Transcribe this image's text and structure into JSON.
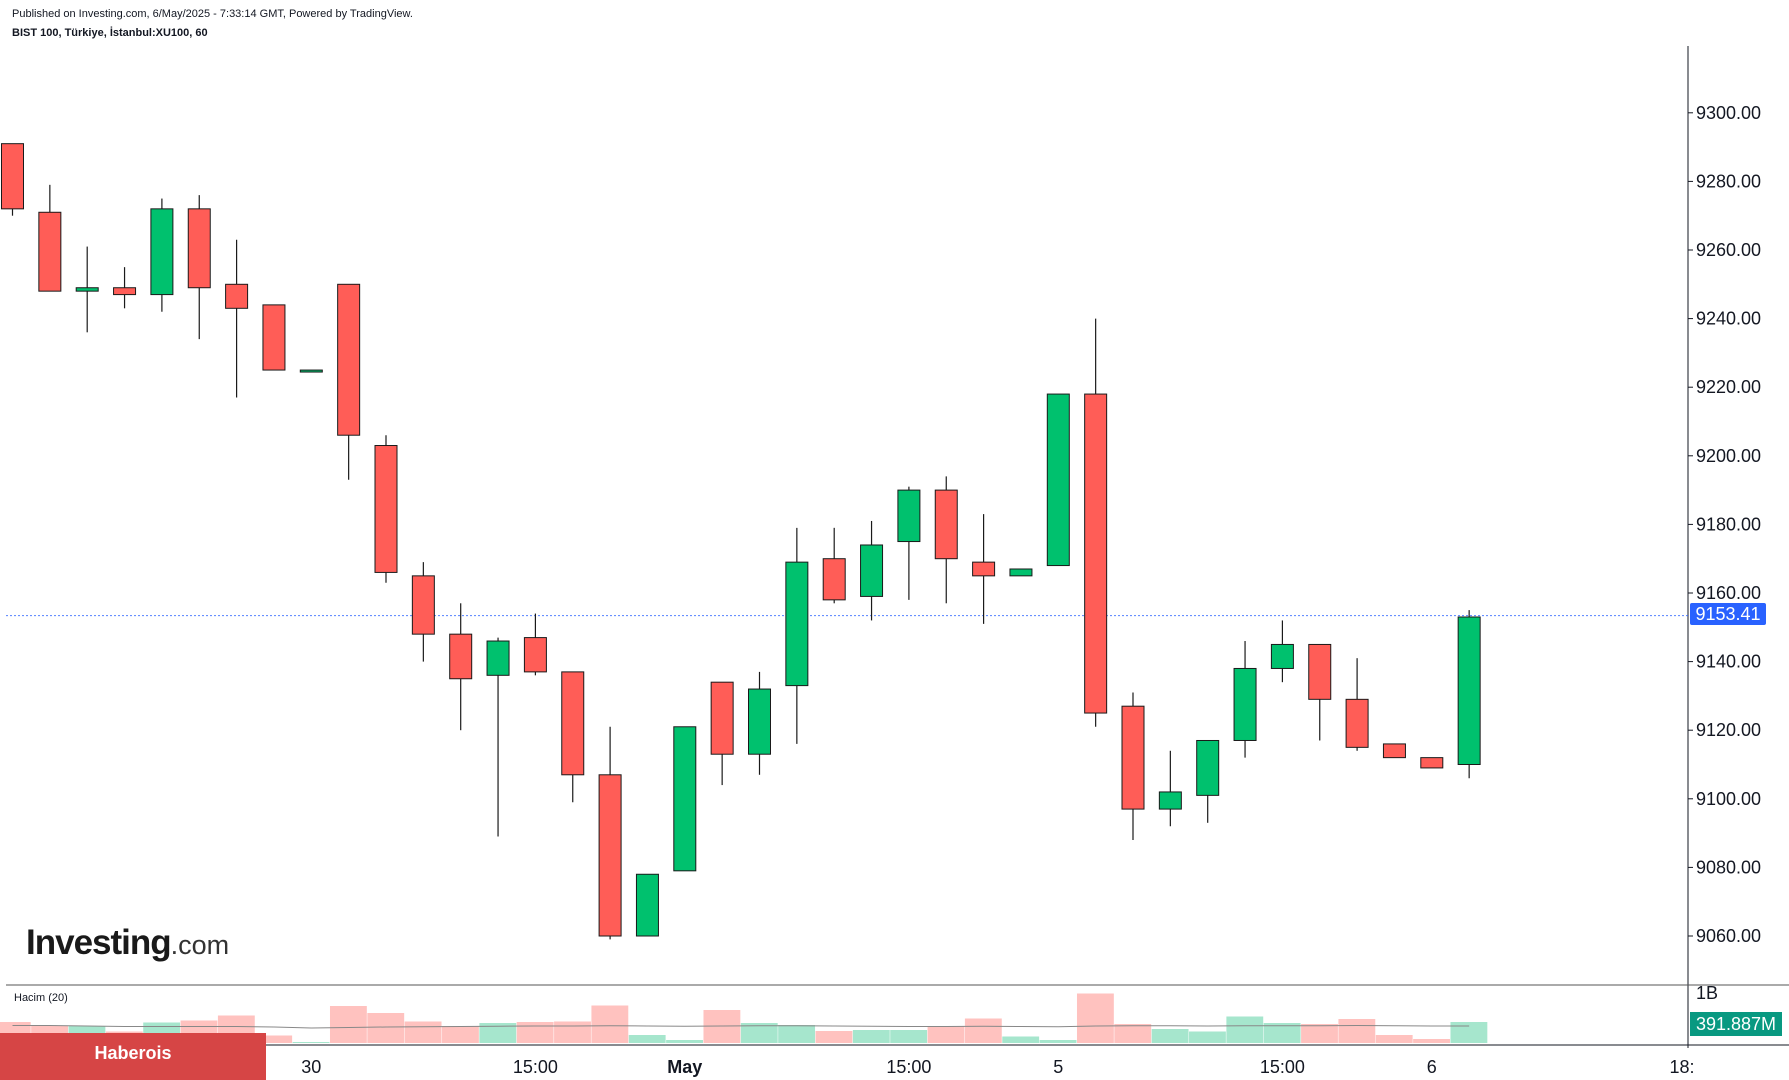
{
  "header": {
    "published": "Published on Investing.com, 6/May/2025 - 7:33:14 GMT, Powered by TradingView.",
    "symbol": "BIST 100, Türkiye, İstanbul:XU100, 60"
  },
  "logo": {
    "brand": "Investing",
    "suffix": ".com"
  },
  "volume_label": "Hacim (20)",
  "last_price_label": "9153.41",
  "last_volume_label": "391.887M",
  "badge": "Haberois",
  "colors": {
    "up": "#00c16e",
    "down": "#ff5d57",
    "vol_up": "#a6e6cd",
    "vol_down": "#ffc2bf",
    "price_tag": "#2962ff",
    "vol_tag": "#089981",
    "badge": "#d64545"
  },
  "chart_data": {
    "type": "candlestick",
    "title": "BIST 100, Türkiye, İstanbul:XU100, 60",
    "interval": "60",
    "ylim": [
      9040,
      9320
    ],
    "y_ticks": [
      9060,
      9080,
      9100,
      9120,
      9140,
      9160,
      9180,
      9200,
      9220,
      9240,
      9260,
      9280,
      9300
    ],
    "y_tick_labels": [
      "9060.00",
      "9080.00",
      "9100.00",
      "9120.00",
      "9140.00",
      "9160.00",
      "9180.00",
      "9200.00",
      "9220.00",
      "9240.00",
      "9260.00",
      "9280.00",
      "9300.00"
    ],
    "x_tick_labels": [
      {
        "index": 4,
        "label": "15:00",
        "bold": false
      },
      {
        "index": 8,
        "label": "30",
        "bold": false
      },
      {
        "index": 14,
        "label": "15:00",
        "bold": false
      },
      {
        "index": 18,
        "label": "May",
        "bold": true
      },
      {
        "index": 24,
        "label": "15:00",
        "bold": false
      },
      {
        "index": 28,
        "label": "5",
        "bold": false
      },
      {
        "index": 34,
        "label": "15:00",
        "bold": false
      },
      {
        "index": 38,
        "label": "6",
        "bold": false
      },
      {
        "index": 44.7,
        "label": "18:",
        "bold": false
      }
    ],
    "last_price": 9153.41,
    "candles": [
      {
        "o": 9291,
        "h": 9291,
        "l": 9270,
        "c": 9272
      },
      {
        "o": 9271,
        "h": 9279,
        "l": 9248,
        "c": 9248
      },
      {
        "o": 9248,
        "h": 9261,
        "l": 9236,
        "c": 9249
      },
      {
        "o": 9249,
        "h": 9255,
        "l": 9243,
        "c": 9247
      },
      {
        "o": 9247,
        "h": 9275,
        "l": 9242,
        "c": 9272
      },
      {
        "o": 9272,
        "h": 9276,
        "l": 9234,
        "c": 9249
      },
      {
        "o": 9250,
        "h": 9263,
        "l": 9217,
        "c": 9243
      },
      {
        "o": 9244,
        "h": 9244,
        "l": 9225,
        "c": 9225
      },
      {
        "o": 9225,
        "h": 9225,
        "l": 9225,
        "c": 9225
      },
      {
        "o": 9250,
        "h": 9250,
        "l": 9193,
        "c": 9206
      },
      {
        "o": 9203,
        "h": 9206,
        "l": 9163,
        "c": 9166
      },
      {
        "o": 9165,
        "h": 9169,
        "l": 9140,
        "c": 9148
      },
      {
        "o": 9148,
        "h": 9157,
        "l": 9120,
        "c": 9135
      },
      {
        "o": 9136,
        "h": 9147,
        "l": 9089,
        "c": 9146
      },
      {
        "o": 9147,
        "h": 9154,
        "l": 9136,
        "c": 9137
      },
      {
        "o": 9137,
        "h": 9137,
        "l": 9099,
        "c": 9107
      },
      {
        "o": 9107,
        "h": 9121,
        "l": 9059,
        "c": 9060
      },
      {
        "o": 9060,
        "h": 9078,
        "l": 9060,
        "c": 9078
      },
      {
        "o": 9079,
        "h": 9121,
        "l": 9079,
        "c": 9121
      },
      {
        "o": 9134,
        "h": 9134,
        "l": 9104,
        "c": 9113
      },
      {
        "o": 9113,
        "h": 9137,
        "l": 9107,
        "c": 9132
      },
      {
        "o": 9133,
        "h": 9179,
        "l": 9116,
        "c": 9169
      },
      {
        "o": 9170,
        "h": 9179,
        "l": 9157,
        "c": 9158
      },
      {
        "o": 9159,
        "h": 9181,
        "l": 9152,
        "c": 9174
      },
      {
        "o": 9175,
        "h": 9191,
        "l": 9158,
        "c": 9190
      },
      {
        "o": 9190,
        "h": 9194,
        "l": 9157,
        "c": 9170
      },
      {
        "o": 9169,
        "h": 9183,
        "l": 9151,
        "c": 9165
      },
      {
        "o": 9165,
        "h": 9167,
        "l": 9165,
        "c": 9167
      },
      {
        "o": 9168,
        "h": 9218,
        "l": 9168,
        "c": 9218
      },
      {
        "o": 9218,
        "h": 9240,
        "l": 9121,
        "c": 9125
      },
      {
        "o": 9127,
        "h": 9131,
        "l": 9088,
        "c": 9097
      },
      {
        "o": 9097,
        "h": 9114,
        "l": 9092,
        "c": 9102
      },
      {
        "o": 9101,
        "h": 9117,
        "l": 9093,
        "c": 9117
      },
      {
        "o": 9117,
        "h": 9146,
        "l": 9112,
        "c": 9138
      },
      {
        "o": 9138,
        "h": 9152,
        "l": 9134,
        "c": 9145
      },
      {
        "o": 9145,
        "h": 9145,
        "l": 9117,
        "c": 9129
      },
      {
        "o": 9129,
        "h": 9141,
        "l": 9114,
        "c": 9115
      },
      {
        "o": 9116,
        "h": 9116,
        "l": 9112,
        "c": 9112
      },
      {
        "o": 9112,
        "h": 9112,
        "l": 9109,
        "c": 9109
      },
      {
        "o": 9110,
        "h": 9155,
        "l": 9106,
        "c": 9153
      }
    ],
    "volume": {
      "label": "Hacim (20)",
      "y_tick_labels": [
        "1B"
      ],
      "ylim": [
        0,
        1000
      ],
      "last_value_label": "391.887M",
      "values": [
        420,
        350,
        340,
        230,
        410,
        450,
        550,
        150,
        20,
        740,
        600,
        430,
        340,
        400,
        420,
        430,
        750,
        160,
        60,
        660,
        400,
        360,
        240,
        260,
        260,
        330,
        490,
        130,
        60,
        990,
        380,
        280,
        230,
        530,
        400,
        380,
        480,
        160,
        80,
        420
      ],
      "ma_values": [
        350,
        350,
        340,
        330,
        330,
        330,
        330,
        320,
        300,
        310,
        320,
        325,
        330,
        335,
        340,
        340,
        345,
        340,
        335,
        340,
        345,
        345,
        340,
        335,
        330,
        330,
        335,
        330,
        325,
        340,
        345,
        345,
        340,
        345,
        345,
        345,
        350,
        345,
        340,
        340
      ]
    }
  }
}
